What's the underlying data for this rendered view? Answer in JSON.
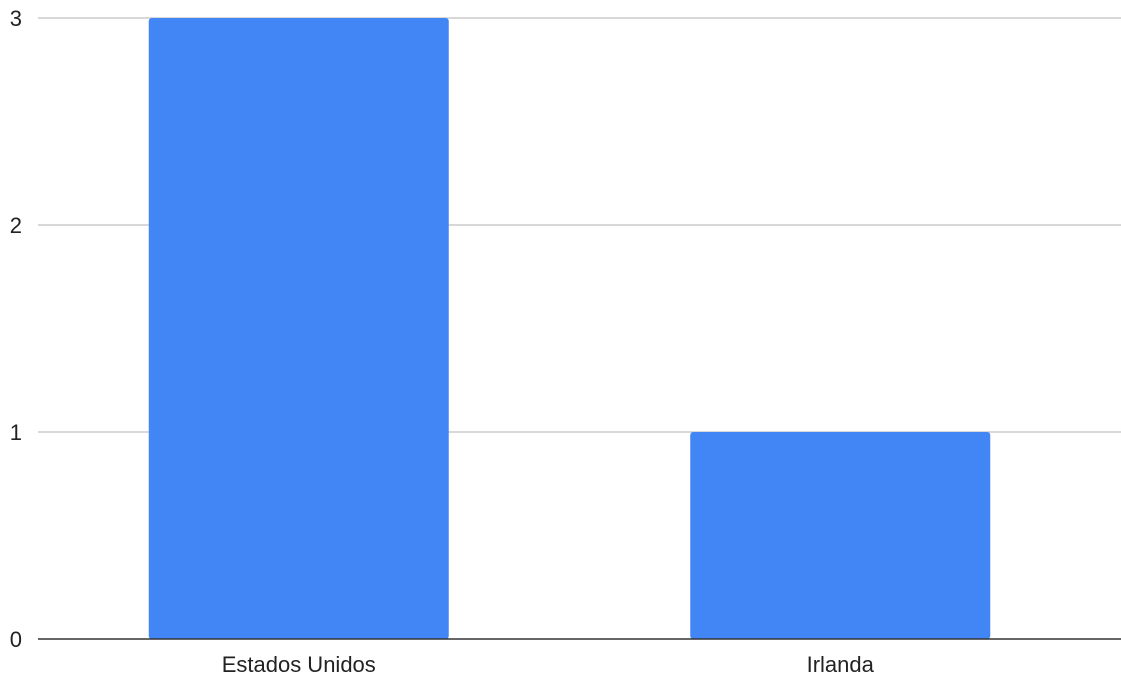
{
  "chart_data": {
    "type": "bar",
    "categories": [
      "Estados Unidos",
      "Irlanda"
    ],
    "values": [
      3,
      1
    ],
    "yticks": [
      "0",
      "1",
      "2",
      "3"
    ],
    "ylim": [
      0,
      3
    ],
    "grid": true,
    "legend": "none",
    "title": "",
    "xlabel": "",
    "ylabel": "",
    "colors": {
      "bar": "#4285F4",
      "grid": "#cccccc",
      "axis": "#333333"
    }
  }
}
